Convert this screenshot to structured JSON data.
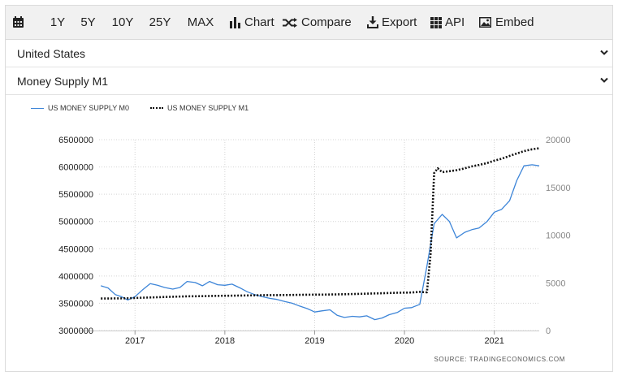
{
  "toolbar": {
    "items": [
      {
        "label": "",
        "icon": "calendar-icon"
      },
      {
        "label": "1Y"
      },
      {
        "label": "5Y"
      },
      {
        "label": "10Y"
      },
      {
        "label": "25Y"
      },
      {
        "label": "MAX"
      },
      {
        "label": "Chart",
        "icon": "bar-chart-icon"
      },
      {
        "label": "Compare",
        "icon": "shuffle-icon"
      },
      {
        "label": "Export",
        "icon": "download-icon"
      },
      {
        "label": "API",
        "icon": "grid-icon"
      },
      {
        "label": "Embed",
        "icon": "image-icon"
      }
    ]
  },
  "country_select": {
    "value": "United States",
    "icon": "chevron-down-icon"
  },
  "indicator_select": {
    "value": "Money Supply M1",
    "icon": "chevron-down-icon"
  },
  "source_text": "SOURCE: TRADINGECONOMICS.COM",
  "colors": {
    "m0": "#3d85d8",
    "m1": "#111111",
    "grid": "#cfcfcf",
    "toolbar_bg": "#f1f1f1"
  },
  "chart_data": {
    "type": "line",
    "grid": true,
    "legend_placement": "top-left",
    "x_ticks": [
      "2017",
      "2018",
      "2019",
      "2020",
      "2021"
    ],
    "x_range": [
      2016.6,
      2021.5
    ],
    "y_left": {
      "range": [
        3000000,
        6500000
      ],
      "ticks": [
        "3000000",
        "3500000",
        "4000000",
        "4500000",
        "5000000",
        "5500000",
        "6000000",
        "6500000"
      ]
    },
    "y_right": {
      "range": [
        0,
        20000
      ],
      "ticks": [
        "0",
        "5000",
        "10000",
        "15000",
        "20000"
      ]
    },
    "series": [
      {
        "name": "US MONEY SUPPLY M0",
        "axis": "left",
        "style": "solid",
        "points": [
          [
            2016.62,
            3820000
          ],
          [
            2016.7,
            3780000
          ],
          [
            2016.78,
            3660000
          ],
          [
            2016.85,
            3620000
          ],
          [
            2016.92,
            3560000
          ],
          [
            2017.0,
            3620000
          ],
          [
            2017.08,
            3740000
          ],
          [
            2017.17,
            3860000
          ],
          [
            2017.25,
            3830000
          ],
          [
            2017.33,
            3790000
          ],
          [
            2017.42,
            3760000
          ],
          [
            2017.5,
            3790000
          ],
          [
            2017.58,
            3900000
          ],
          [
            2017.67,
            3880000
          ],
          [
            2017.75,
            3820000
          ],
          [
            2017.83,
            3900000
          ],
          [
            2017.92,
            3840000
          ],
          [
            2018.0,
            3830000
          ],
          [
            2018.08,
            3850000
          ],
          [
            2018.17,
            3780000
          ],
          [
            2018.25,
            3710000
          ],
          [
            2018.33,
            3660000
          ],
          [
            2018.42,
            3620000
          ],
          [
            2018.5,
            3590000
          ],
          [
            2018.58,
            3570000
          ],
          [
            2018.67,
            3530000
          ],
          [
            2018.75,
            3500000
          ],
          [
            2018.83,
            3450000
          ],
          [
            2018.92,
            3400000
          ],
          [
            2019.0,
            3340000
          ],
          [
            2019.08,
            3360000
          ],
          [
            2019.17,
            3380000
          ],
          [
            2019.25,
            3280000
          ],
          [
            2019.33,
            3240000
          ],
          [
            2019.42,
            3260000
          ],
          [
            2019.5,
            3250000
          ],
          [
            2019.58,
            3270000
          ],
          [
            2019.67,
            3200000
          ],
          [
            2019.75,
            3230000
          ],
          [
            2019.83,
            3290000
          ],
          [
            2019.92,
            3330000
          ],
          [
            2020.0,
            3410000
          ],
          [
            2020.08,
            3420000
          ],
          [
            2020.17,
            3480000
          ],
          [
            2020.25,
            4180000
          ],
          [
            2020.33,
            4960000
          ],
          [
            2020.42,
            5130000
          ],
          [
            2020.5,
            5000000
          ],
          [
            2020.58,
            4700000
          ],
          [
            2020.67,
            4800000
          ],
          [
            2020.75,
            4850000
          ],
          [
            2020.83,
            4880000
          ],
          [
            2020.92,
            5000000
          ],
          [
            2021.0,
            5170000
          ],
          [
            2021.08,
            5220000
          ],
          [
            2021.17,
            5380000
          ],
          [
            2021.25,
            5750000
          ],
          [
            2021.33,
            6020000
          ],
          [
            2021.42,
            6040000
          ],
          [
            2021.5,
            6020000
          ]
        ]
      },
      {
        "name": "US MONEY SUPPLY M1",
        "axis": "right",
        "style": "dotted",
        "points": [
          [
            2016.62,
            3350
          ],
          [
            2016.75,
            3360
          ],
          [
            2016.92,
            3380
          ],
          [
            2017.08,
            3440
          ],
          [
            2017.25,
            3490
          ],
          [
            2017.42,
            3540
          ],
          [
            2017.58,
            3580
          ],
          [
            2017.75,
            3600
          ],
          [
            2017.92,
            3630
          ],
          [
            2018.08,
            3650
          ],
          [
            2018.25,
            3680
          ],
          [
            2018.42,
            3700
          ],
          [
            2018.58,
            3710
          ],
          [
            2018.75,
            3730
          ],
          [
            2018.92,
            3750
          ],
          [
            2019.08,
            3760
          ],
          [
            2019.25,
            3790
          ],
          [
            2019.42,
            3820
          ],
          [
            2019.58,
            3860
          ],
          [
            2019.75,
            3910
          ],
          [
            2019.92,
            3960
          ],
          [
            2020.08,
            3980
          ],
          [
            2020.17,
            4050
          ],
          [
            2020.25,
            4000
          ],
          [
            2020.29,
            8000
          ],
          [
            2020.33,
            16500
          ],
          [
            2020.37,
            17000
          ],
          [
            2020.42,
            16600
          ],
          [
            2020.5,
            16700
          ],
          [
            2020.58,
            16800
          ],
          [
            2020.67,
            17000
          ],
          [
            2020.75,
            17200
          ],
          [
            2020.83,
            17350
          ],
          [
            2020.92,
            17550
          ],
          [
            2021.0,
            17800
          ],
          [
            2021.08,
            18000
          ],
          [
            2021.17,
            18300
          ],
          [
            2021.25,
            18550
          ],
          [
            2021.33,
            18800
          ],
          [
            2021.42,
            19000
          ],
          [
            2021.5,
            19100
          ]
        ]
      }
    ]
  }
}
